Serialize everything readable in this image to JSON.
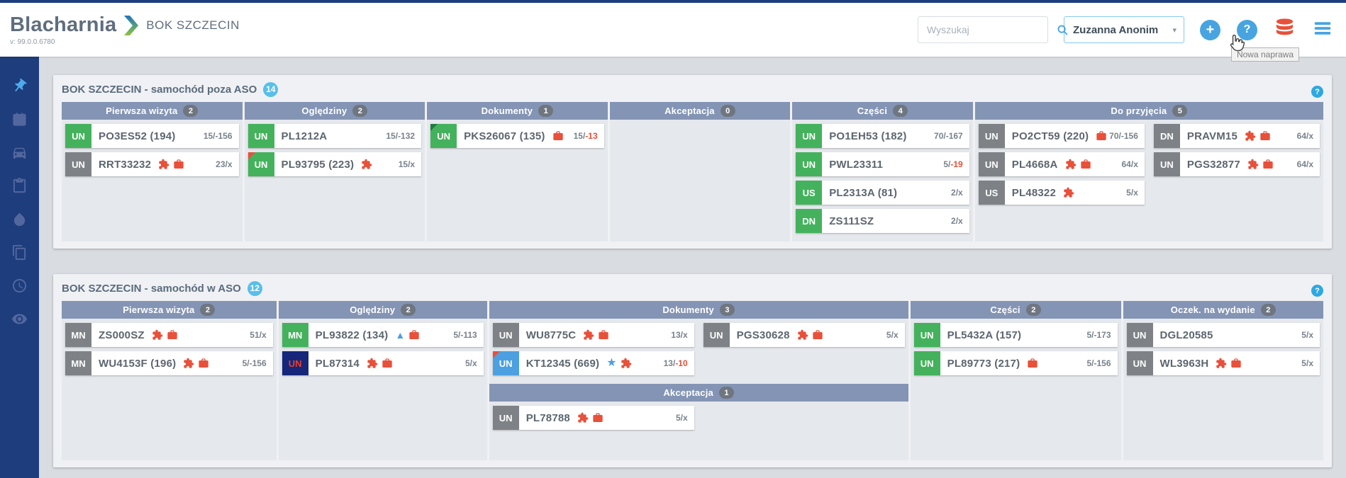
{
  "colors": {
    "accent_blue": "#47a4e0",
    "red": "#e8503a",
    "green_badge": "#44b25c",
    "gray_badge": "#7e8286",
    "navy_badge": "#16267b",
    "blue_badge": "#4c9fe0",
    "column_header": "#8494b4",
    "sidebar": "#1d3d7c",
    "title_badge": "#58bfe9"
  },
  "glyphs": {
    "plus": "+",
    "help": "?",
    "caret": "▾"
  },
  "header": {
    "logo_text": "Blacharnia",
    "app_title": "BOK SZCZECIN",
    "version": "v: 99.0.0.6780",
    "search_placeholder": "Wyszukaj",
    "user_name": "Zuzanna Anonim",
    "tooltip": "Nowa naprawa",
    "actions": [
      {
        "name": "new-repair-button",
        "icon": "plus-circle-icon"
      },
      {
        "name": "help-button",
        "icon": "help-circle-icon"
      },
      {
        "name": "database-button",
        "icon": "database-icon"
      },
      {
        "name": "menu-button",
        "icon": "menu-icon"
      }
    ]
  },
  "sidebar": {
    "items": [
      {
        "icon": "pin-icon",
        "active": true
      },
      {
        "icon": "calendar-icon",
        "active": false
      },
      {
        "icon": "car-icon",
        "active": false
      },
      {
        "icon": "clipboard-icon",
        "active": false
      },
      {
        "icon": "drop-icon",
        "active": false
      },
      {
        "icon": "copy-icon",
        "active": false
      },
      {
        "icon": "clock-icon",
        "active": false
      },
      {
        "icon": "eye-icon",
        "active": false
      }
    ]
  },
  "boards": [
    {
      "title": "BOK SZCZECIN - samochód poza ASO",
      "count": "14",
      "body_height": 172,
      "columns": [
        {
          "label": "Pierwsza wizyta",
          "count": "2",
          "span": 1,
          "lanes": [
            [
              {
                "badge": "UN",
                "style": "green",
                "corner": "",
                "plate": "PO3ES52 (194)",
                "icons": [],
                "count_a": "15/",
                "count_b": "-156",
                "b_red": false
              },
              {
                "badge": "UN",
                "style": "gray",
                "corner": "",
                "plate": "RRT33232",
                "icons": [
                  "puzzle-icon",
                  "briefcase-icon"
                ],
                "count_a": "23/",
                "count_b": "x",
                "b_red": false
              }
            ]
          ]
        },
        {
          "label": "Oględziny",
          "count": "2",
          "span": 1,
          "lanes": [
            [
              {
                "badge": "UN",
                "style": "green",
                "corner": "",
                "plate": "PL1212A",
                "icons": [],
                "count_a": "15/",
                "count_b": "-132",
                "b_red": false
              },
              {
                "badge": "UN",
                "style": "green",
                "corner": "red",
                "plate": "PL93795 (223)",
                "icons": [
                  "puzzle-icon"
                ],
                "count_a": "15/",
                "count_b": "x",
                "b_red": false
              }
            ]
          ]
        },
        {
          "label": "Dokumenty",
          "count": "1",
          "span": 1,
          "lanes": [
            [
              {
                "badge": "UN",
                "style": "green",
                "corner": "darkgreen",
                "plate": "PKS26067 (135)",
                "icons": [
                  "briefcase-icon"
                ],
                "count_a": "15/",
                "count_b": "-13",
                "b_red": true
              }
            ]
          ]
        },
        {
          "label": "Akceptacja",
          "count": "0",
          "span": 1,
          "lanes": [
            []
          ]
        },
        {
          "label": "Części",
          "count": "4",
          "span": 1,
          "lanes": [
            [
              {
                "badge": "UN",
                "style": "green",
                "corner": "",
                "plate": "PO1EH53 (182)",
                "icons": [],
                "count_a": "70/",
                "count_b": "-167",
                "b_red": false
              },
              {
                "badge": "UN",
                "style": "green",
                "corner": "",
                "plate": "PWL23311",
                "icons": [],
                "count_a": "5/",
                "count_b": "-19",
                "b_red": true
              },
              {
                "badge": "US",
                "style": "green",
                "corner": "",
                "plate": "PL2313A (81)",
                "icons": [],
                "count_a": "2/",
                "count_b": "x",
                "b_red": false
              },
              {
                "badge": "DN",
                "style": "green",
                "corner": "",
                "plate": "ZS111SZ",
                "icons": [],
                "count_a": "2/",
                "count_b": "x",
                "b_red": false
              }
            ]
          ]
        },
        {
          "label": "Do przyjęcia",
          "count": "5",
          "span": 1.93,
          "lanes": [
            [
              {
                "badge": "UN",
                "style": "gray",
                "corner": "",
                "plate": "PO2CT59 (220)",
                "icons": [
                  "briefcase-icon"
                ],
                "count_a": "70/",
                "count_b": "-156",
                "b_red": false
              },
              {
                "badge": "UN",
                "style": "gray",
                "corner": "",
                "plate": "PL4668A",
                "icons": [
                  "puzzle-icon",
                  "briefcase-icon"
                ],
                "count_a": "64/",
                "count_b": "x",
                "b_red": false
              },
              {
                "badge": "US",
                "style": "gray",
                "corner": "",
                "plate": "PL48322",
                "icons": [
                  "puzzle-icon"
                ],
                "count_a": "5/",
                "count_b": "x",
                "b_red": false
              }
            ],
            [
              {
                "badge": "DN",
                "style": "gray",
                "corner": "",
                "plate": "PRAVM15",
                "icons": [
                  "puzzle-icon",
                  "briefcase-icon"
                ],
                "count_a": "64/",
                "count_b": "x",
                "b_red": false
              },
              {
                "badge": "UN",
                "style": "gray",
                "corner": "",
                "plate": "PGS32877",
                "icons": [
                  "puzzle-icon",
                  "briefcase-icon"
                ],
                "count_a": "64/",
                "count_b": "x",
                "b_red": false
              }
            ]
          ]
        }
      ]
    },
    {
      "title": "BOK SZCZECIN - samochód w ASO",
      "count": "12",
      "body_height": 200,
      "columns": [
        {
          "label": "Pierwsza wizyta",
          "count": "2",
          "span": 1.05,
          "lanes": [
            [
              {
                "badge": "MN",
                "style": "gray",
                "corner": "",
                "plate": "ZS000SZ",
                "icons": [
                  "puzzle-icon",
                  "briefcase-icon"
                ],
                "count_a": "51/",
                "count_b": "x",
                "b_red": false
              },
              {
                "badge": "MN",
                "style": "gray",
                "corner": "",
                "plate": "WU4153F (196)",
                "icons": [
                  "puzzle-icon",
                  "briefcase-icon"
                ],
                "count_a": "5/",
                "count_b": "-156",
                "b_red": false
              }
            ]
          ]
        },
        {
          "label": "Oględziny",
          "count": "2",
          "span": 1.02,
          "lanes": [
            [
              {
                "badge": "MN",
                "style": "green",
                "corner": "",
                "plate": "PL93822 (134)",
                "icons": [
                  "triangle-icon",
                  "briefcase-icon"
                ],
                "count_a": "5/",
                "count_b": "-113",
                "b_red": false
              },
              {
                "badge": "UN",
                "style": "navy",
                "corner": "",
                "plate": "PL87314",
                "icons": [
                  "puzzle-icon",
                  "briefcase-icon"
                ],
                "count_a": "5/",
                "count_b": "x",
                "b_red": false
              }
            ]
          ]
        },
        {
          "label": "Dokumenty",
          "count": "3",
          "span": 2.05,
          "lanes": [
            [
              {
                "badge": "UN",
                "style": "gray",
                "corner": "",
                "plate": "WU8775C",
                "icons": [
                  "puzzle-icon",
                  "briefcase-icon"
                ],
                "count_a": "13/",
                "count_b": "x",
                "b_red": false
              },
              {
                "badge": "UN",
                "style": "blue",
                "corner": "red",
                "plate": "KT12345 (669)",
                "icons": [
                  "star-icon",
                  "puzzle-icon"
                ],
                "count_a": "13/",
                "count_b": "-10",
                "b_red": true
              }
            ],
            [
              {
                "badge": "UN",
                "style": "gray",
                "corner": "",
                "plate": "PGS30628",
                "icons": [
                  "puzzle-icon",
                  "briefcase-icon"
                ],
                "count_a": "5/",
                "count_b": "x",
                "b_red": false
              }
            ]
          ],
          "sub": {
            "label": "Akceptacja",
            "count": "1",
            "cards": [
              {
                "badge": "UN",
                "style": "gray",
                "corner": "",
                "plate": "PL78788",
                "icons": [
                  "puzzle-icon",
                  "briefcase-icon"
                ],
                "count_a": "5/",
                "count_b": "x",
                "b_red": false
              }
            ]
          }
        },
        {
          "label": "Części",
          "count": "2",
          "span": 1.03,
          "lanes": [
            [
              {
                "badge": "UN",
                "style": "green",
                "corner": "",
                "plate": "PL5432A (157)",
                "icons": [],
                "count_a": "5/",
                "count_b": "-173",
                "b_red": false
              },
              {
                "badge": "UN",
                "style": "green",
                "corner": "",
                "plate": "PL89773 (217)",
                "icons": [
                  "briefcase-icon"
                ],
                "count_a": "5/",
                "count_b": "-156",
                "b_red": false
              }
            ]
          ]
        },
        {
          "label": "Oczek. na wydanie",
          "count": "2",
          "span": 0.98,
          "lanes": [
            [
              {
                "badge": "UN",
                "style": "gray",
                "corner": "",
                "plate": "DGL20585",
                "icons": [],
                "count_a": "5/",
                "count_b": "x",
                "b_red": false
              },
              {
                "badge": "UN",
                "style": "gray",
                "corner": "",
                "plate": "WL3963H",
                "icons": [
                  "puzzle-icon",
                  "briefcase-icon"
                ],
                "count_a": "5/",
                "count_b": "x",
                "b_red": false
              }
            ]
          ]
        }
      ]
    }
  ]
}
